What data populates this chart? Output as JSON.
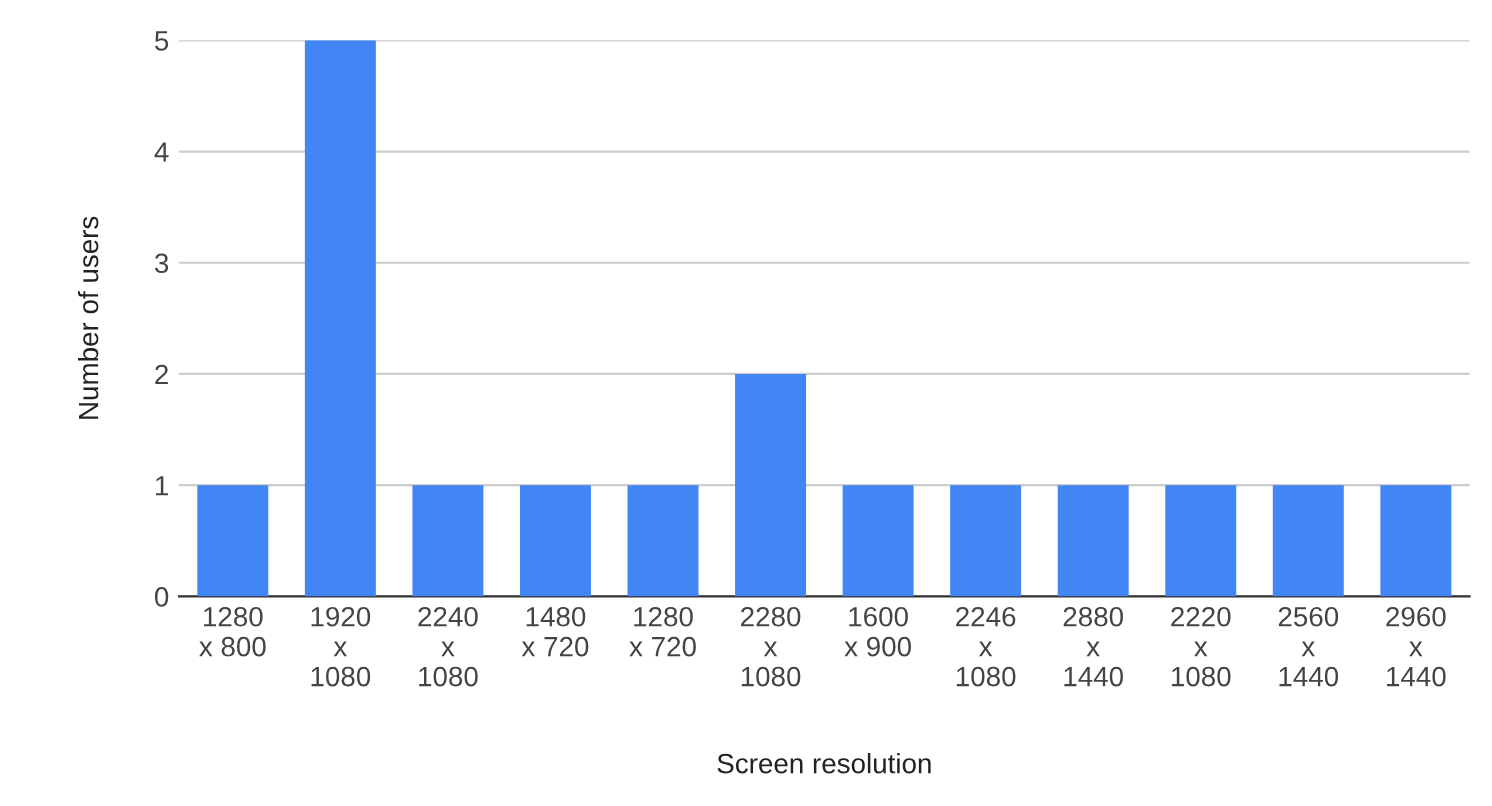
{
  "chart_data": {
    "type": "bar",
    "xlabel": "Screen resolution",
    "ylabel": "Number of users",
    "categories": [
      "1280\nx 800",
      "1920\nx\n1080",
      "2240\nx\n1080",
      "1480\nx 720",
      "1280\nx 720",
      "2280\nx\n1080",
      "1600\nx 900",
      "2246\nx\n1080",
      "2880\nx\n1440",
      "2220\nx\n1080",
      "2560\nx\n1440",
      "2960\nx\n1440"
    ],
    "values": [
      1,
      5,
      1,
      1,
      1,
      2,
      1,
      1,
      1,
      1,
      1,
      1
    ],
    "color": "#4285f4",
    "ylim": [
      0,
      5
    ],
    "yticks": [
      0,
      1,
      2,
      3,
      4,
      5
    ],
    "grid": "y"
  }
}
